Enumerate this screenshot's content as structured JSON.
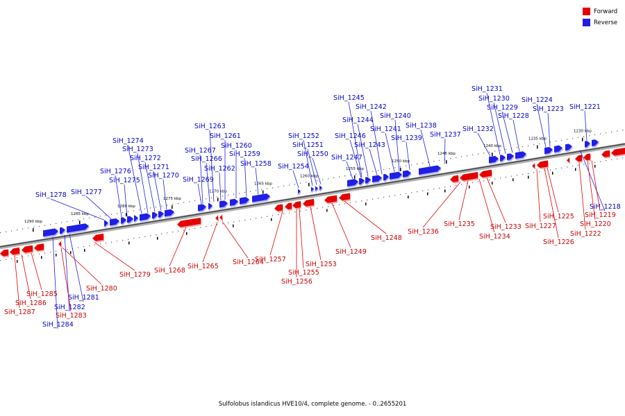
{
  "legend": {
    "forward_label": "Forward",
    "reverse_label": "Reverse",
    "forward_color": "#e60000",
    "reverse_color": "#1f1fe6"
  },
  "caption": "Sulfolobus islandicus HVE10/4, complete genome. - 0..2655201",
  "colors": {
    "backbone": "#8c8c8c",
    "forward": "#e60000",
    "reverse": "#1f1fe6",
    "forward_label": "#cc0000",
    "reverse_label": "#0000cc"
  },
  "kbp_marks": [
    {
      "label": "1290 kbp"
    },
    {
      "label": "1285 kbp"
    },
    {
      "label": "1280 kbp"
    },
    {
      "label": "1275 kbp"
    },
    {
      "label": "1270 kbp"
    },
    {
      "label": "1265 kbp"
    },
    {
      "label": "1260 kbp"
    },
    {
      "label": "1255 kbp"
    },
    {
      "label": "1250 kbp"
    },
    {
      "label": "1245 kbp"
    },
    {
      "label": "1240 kbp"
    },
    {
      "label": "1235 kbp"
    },
    {
      "label": "1230 kbp"
    }
  ],
  "reverse_genes": [
    "SiH_1221",
    "SiH_1223",
    "SiH_1224",
    "SiH_1228",
    "SiH_1229",
    "SiH_1230",
    "SiH_1231",
    "SiH_1232",
    "SiH_1237",
    "SiH_1238",
    "SiH_1239",
    "SiH_1240",
    "SiH_1241",
    "SiH_1242",
    "SiH_1243",
    "SiH_1244",
    "SiH_1245",
    "SiH_1246",
    "SiH_1247",
    "SiH_1250",
    "SiH_1251",
    "SiH_1252",
    "SiH_1254",
    "SiH_1258",
    "SiH_1259",
    "SiH_1260",
    "SiH_1261",
    "SiH_1262",
    "SiH_1263",
    "SiH_1266",
    "SiH_1267",
    "SiH_1269",
    "SiH_1270",
    "SiH_1271",
    "SiH_1272",
    "SiH_1273",
    "SiH_1274",
    "SiH_1275",
    "SiH_1276",
    "SiH_1277",
    "SiH_1278",
    "SiH_1218",
    "SiH_1281",
    "SiH_1282",
    "SiH_1284"
  ],
  "forward_genes": [
    "SiH_1219",
    "SiH_1220",
    "SiH_1222",
    "SiH_1225",
    "SiH_1226",
    "SiH_1227",
    "SiH_1233",
    "SiH_1234",
    "SiH_1235",
    "SiH_1236",
    "SiH_1248",
    "SiH_1249",
    "SiH_1253",
    "SiH_1255",
    "SiH_1256",
    "SiH_1257",
    "SiH_1264",
    "SiH_1265",
    "SiH_1268",
    "SiH_1279",
    "SiH_1280",
    "SiH_1283",
    "SiH_1285",
    "SiH_1286",
    "SiH_1287"
  ]
}
